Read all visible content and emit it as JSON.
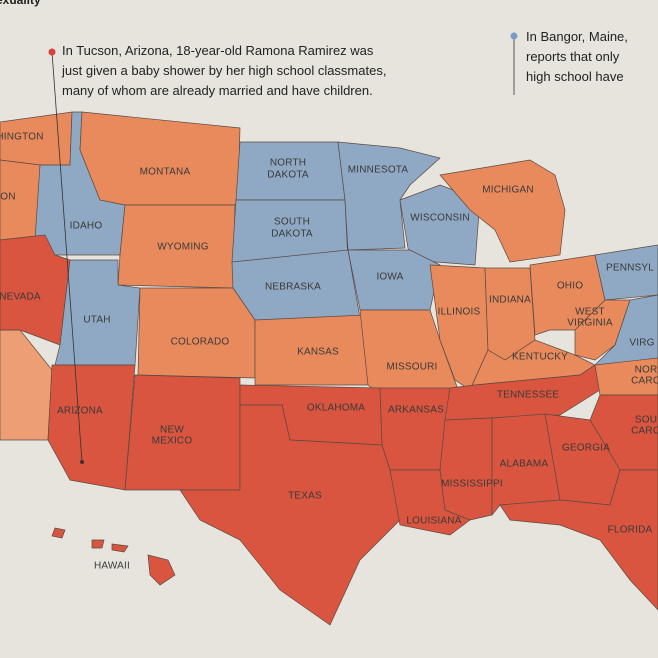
{
  "header": "exuality",
  "annotations": [
    [
      "In Tucson, Arizona, 18-year-old Ramona Ramirez was",
      "just given a baby shower by her high school classmates,",
      "many of whom are already married and have children."
    ],
    [
      "In Bangor, Maine,",
      "reports that only",
      "high school have"
    ]
  ],
  "states": [
    [
      "HINGTON"
    ],
    [
      "ON"
    ],
    [
      "IDAHO"
    ],
    [
      "MONTANA"
    ],
    [
      "WYOMING"
    ],
    [
      "NORTH",
      "DAKOTA"
    ],
    [
      "SOUTH",
      "DAKOTA"
    ],
    [
      "MINNESOTA"
    ],
    [
      "WISCONSIN"
    ],
    [
      "MICHIGAN"
    ],
    [
      "NEBRASKA"
    ],
    [
      "IOWA"
    ],
    [
      "NEVADA"
    ],
    [
      "UTAH"
    ],
    [
      "COLORADO"
    ],
    [
      "KANSAS"
    ],
    [
      "MISSOURI"
    ],
    [
      "ILLINOIS"
    ],
    [
      "INDIANA"
    ],
    [
      "OHIO"
    ],
    [
      "PENNSYL"
    ],
    [
      "WEST",
      "VIRGINIA"
    ],
    [
      "VIRG"
    ],
    [
      "KENTUCKY"
    ],
    [
      "ARIZONA"
    ],
    [
      "NEW",
      "MEXICO"
    ],
    [
      "OKLAHOMA"
    ],
    [
      "ARKANSAS"
    ],
    [
      "TENNESSEE"
    ],
    [
      "NOR",
      "CARO"
    ],
    [
      "SOU",
      "CARO"
    ],
    [
      "TEXAS"
    ],
    [
      "LOUISIANA"
    ],
    [
      "MISSISSIPPI"
    ],
    [
      "ALABAMA"
    ],
    [
      "GEORGIA"
    ],
    [
      "FLORIDA"
    ],
    [
      "HAWAII"
    ]
  ]
}
